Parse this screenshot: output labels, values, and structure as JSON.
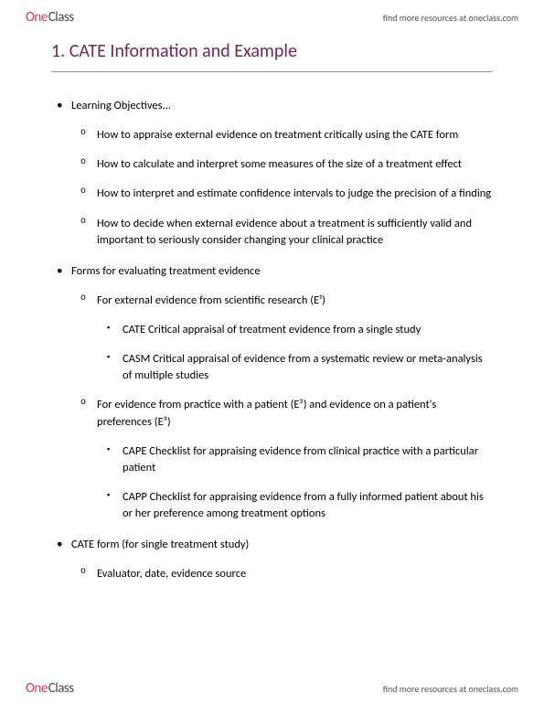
{
  "brand": {
    "part1": "One",
    "part2": "Class"
  },
  "header_link": "find more resources at oneclass.com",
  "footer_link": "find more resources at oneclass.com",
  "title": "1. CATE Information and Example",
  "colors": {
    "title_color": "#6b2b52",
    "logo_red": "#d04050",
    "logo_gray": "#4a4a4a",
    "text": "#000000",
    "rule": "#999999",
    "background": "#ffffff"
  },
  "bullets": [
    {
      "text": "Learning Objectives...",
      "children": [
        {
          "text": "How to appraise external evidence on treatment critically using the CATE form"
        },
        {
          "text": "How to calculate and interpret some measures of the size of a treatment effect"
        },
        {
          "text": "How to interpret and estimate confidence intervals to judge the precision of a finding"
        },
        {
          "text": "How to decide when external evidence about a treatment is sufficiently valid and important to seriously consider changing your clinical practice"
        }
      ]
    },
    {
      "text": "Forms for evaluating treatment evidence",
      "children": [
        {
          "text": "For external evidence from scientific research (E¹)",
          "children": [
            {
              "text": "CATE Critical appraisal of treatment evidence from a single study"
            },
            {
              "text": "CASM Critical appraisal of evidence from a systematic review or meta-analysis of multiple studies"
            }
          ]
        },
        {
          "text": "For evidence from practice with a patient (E²) and evidence on a patient's preferences (E³)",
          "children": [
            {
              "text": "CAPE Checklist for appraising evidence from clinical practice with a particular patient"
            },
            {
              "text": "CAPP Checklist for appraising evidence from a fully informed patient about his or her preference among treatment options"
            }
          ]
        }
      ]
    },
    {
      "text": "CATE form (for single treatment study)",
      "children": [
        {
          "text": "Evaluator, date, evidence source"
        }
      ]
    }
  ]
}
